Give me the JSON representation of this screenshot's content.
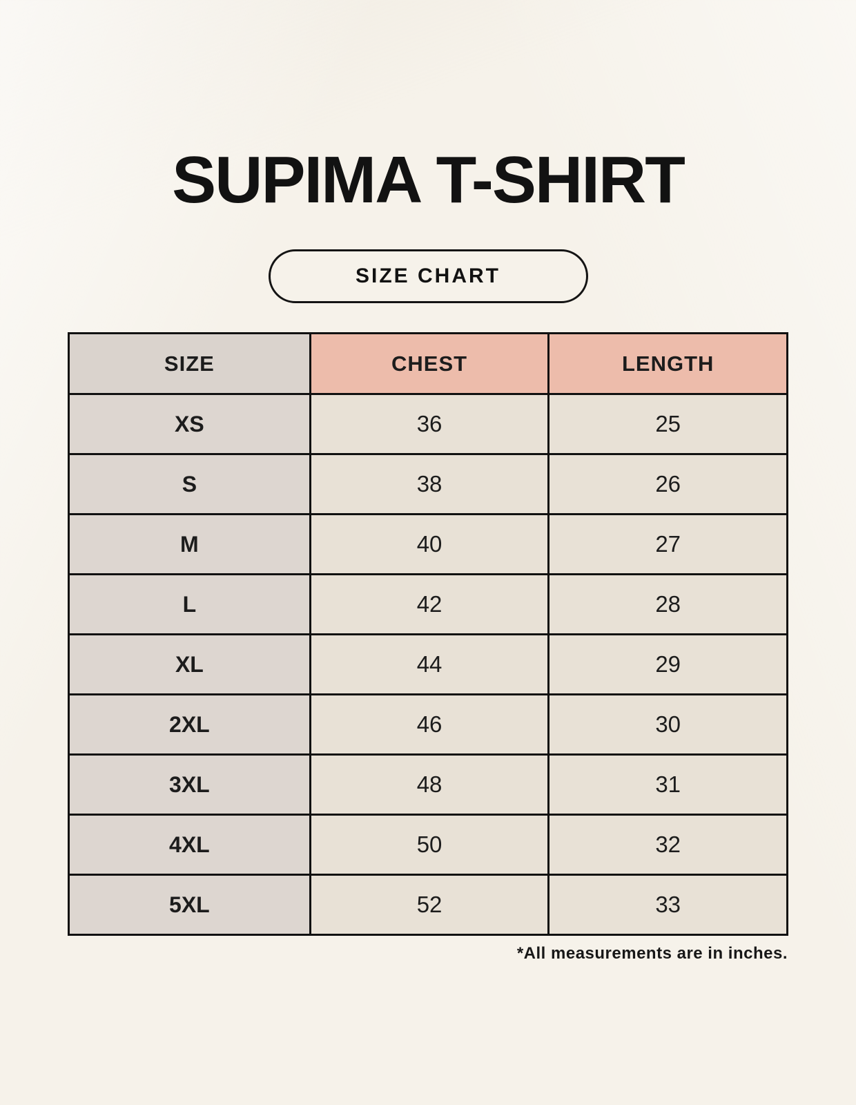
{
  "page": {
    "title": "SUPIMA T-SHIRT",
    "size_chart_button": "SIZE CHART",
    "footnote": "*All measurements are in inches."
  },
  "chart_data": {
    "type": "table",
    "title": "SUPIMA T-SHIRT",
    "subtitle": "SIZE CHART",
    "columns": [
      "SIZE",
      "CHEST",
      "LENGTH"
    ],
    "rows": [
      {
        "size": "XS",
        "chest": "36",
        "length": "25"
      },
      {
        "size": "S",
        "chest": "38",
        "length": "26"
      },
      {
        "size": "M",
        "chest": "40",
        "length": "27"
      },
      {
        "size": "L",
        "chest": "42",
        "length": "28"
      },
      {
        "size": "XL",
        "chest": "44",
        "length": "29"
      },
      {
        "size": "2XL",
        "chest": "46",
        "length": "30"
      },
      {
        "size": "3XL",
        "chest": "48",
        "length": "31"
      },
      {
        "size": "4XL",
        "chest": "50",
        "length": "32"
      },
      {
        "size": "5XL",
        "chest": "52",
        "length": "33"
      }
    ],
    "units_note": "*All measurements are in inches.",
    "layout": {
      "grid": "off",
      "legend": "none",
      "header_accent_columns": [
        "CHEST",
        "LENGTH"
      ]
    }
  },
  "colors": {
    "background": "#f6f2ea",
    "header_accent_pink": "#edbcab",
    "size_column_gray": "#ddd6d0",
    "cell_cream": "#e8e1d6",
    "table_border": "#111111",
    "text": "#1c1c1c"
  }
}
